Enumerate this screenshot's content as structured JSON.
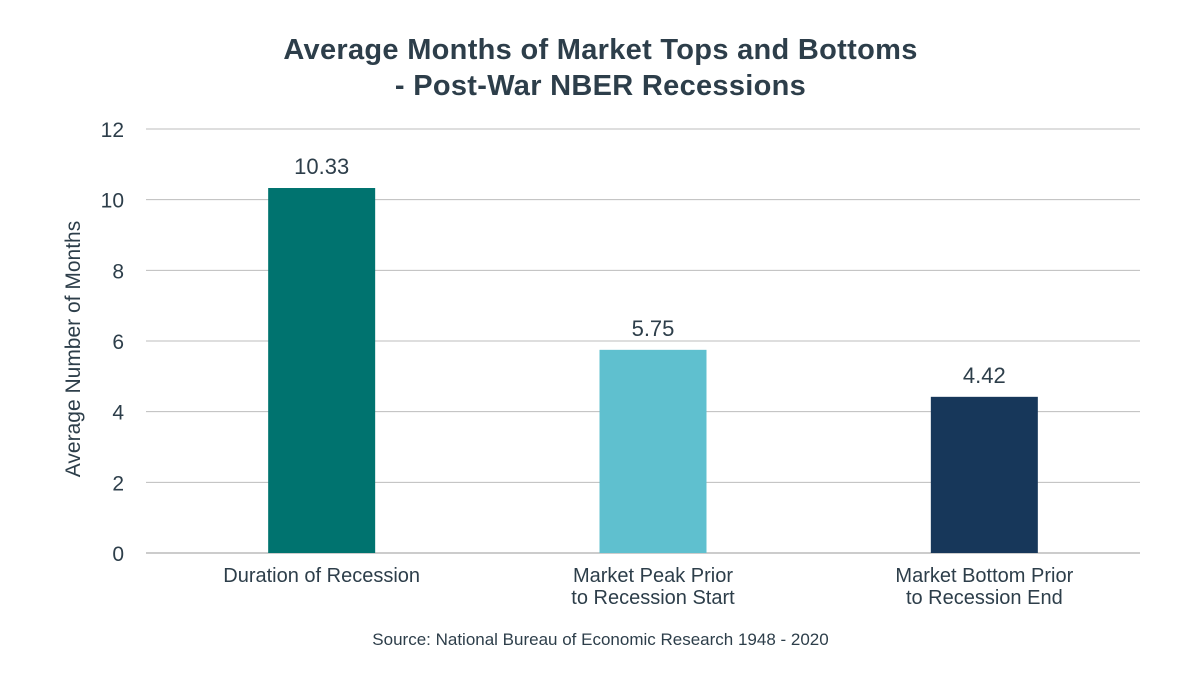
{
  "chart_data": {
    "type": "bar",
    "title_lines": [
      "Average Months of Market Tops and Bottoms",
      "- Post-War NBER Recessions"
    ],
    "ylabel": "Average Number of Months",
    "xlabel": "",
    "ylim": [
      0,
      12
    ],
    "yticks": [
      0,
      2,
      4,
      6,
      8,
      10,
      12
    ],
    "grid": true,
    "categories": [
      [
        "Duration of Recession"
      ],
      [
        "Market Peak Prior",
        "to Recession Start"
      ],
      [
        "Market Bottom Prior",
        "to Recession End"
      ]
    ],
    "values": [
      10.33,
      5.75,
      4.42
    ],
    "value_labels": [
      "10.33",
      "5.75",
      "4.42"
    ],
    "colors": [
      "#00736f",
      "#5fc0cf",
      "#17375a"
    ],
    "source": "Source: National Bureau of Economic Research 1948 - 2020"
  }
}
